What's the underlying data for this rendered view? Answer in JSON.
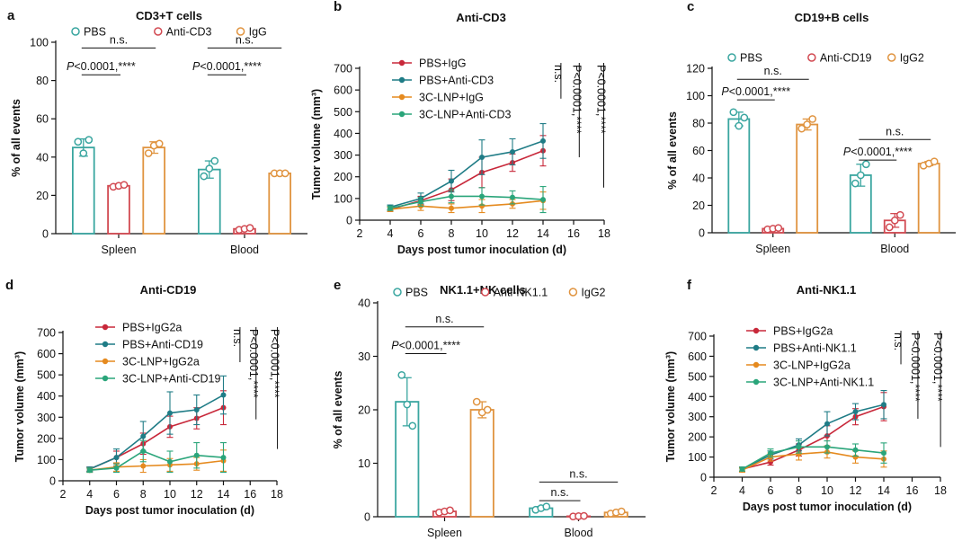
{
  "panels": [
    {
      "id": "a",
      "label": "a",
      "type": "bar",
      "title": "CD3+T cells",
      "ylabel": "% of all events",
      "ylim": [
        0,
        100
      ],
      "yticks": [
        0,
        20,
        40,
        60,
        80,
        100
      ],
      "categories": [
        "Spleen",
        "Blood"
      ],
      "series": [
        {
          "name": "PBS",
          "color": "#3aa6a0",
          "means": [
            45,
            33.5
          ],
          "errs": [
            4.5,
            4.5
          ],
          "points": [
            [
              48,
              42,
              49
            ],
            [
              30,
              34,
              38
            ]
          ]
        },
        {
          "name": "Anti-CD3",
          "color": "#d24a52",
          "means": [
            25,
            2.5
          ],
          "errs": [
            1,
            0.8
          ],
          "points": [
            [
              24.5,
              25,
              25.5
            ],
            [
              2,
              2.5,
              3
            ]
          ]
        },
        {
          "name": "IgG",
          "color": "#e09440",
          "means": [
            45,
            31.5
          ],
          "errs": [
            3,
            0.5
          ],
          "points": [
            [
              42,
              46,
              47
            ],
            [
              31.5,
              31.5,
              31.5
            ]
          ]
        }
      ],
      "annotations": [
        {
          "text": "n.s.",
          "cat": 0,
          "from": 0,
          "to": 2,
          "y": 97
        },
        {
          "p": "P",
          "text": "<0.0001,****",
          "cat": 0,
          "from": 0,
          "to": 1,
          "y": 83
        },
        {
          "text": "n.s.",
          "cat": 1,
          "from": 0,
          "to": 2,
          "y": 97
        },
        {
          "p": "P",
          "text": "<0.0001,****",
          "cat": 1,
          "from": 0,
          "to": 1,
          "y": 83
        }
      ]
    },
    {
      "id": "b",
      "label": "b",
      "type": "line",
      "title": "Anti-CD3",
      "ylabel": "Tumor volume (mm³)",
      "xlabel": "Days post tumor inoculation (d)",
      "xlim": [
        2,
        18
      ],
      "xticks": [
        2,
        4,
        6,
        8,
        10,
        12,
        14,
        16,
        18
      ],
      "ylim": [
        0,
        700
      ],
      "yticks": [
        0,
        100,
        200,
        300,
        400,
        500,
        600,
        700
      ],
      "x": [
        4,
        6,
        8,
        10,
        12,
        14
      ],
      "series": [
        {
          "name": "PBS+IgG",
          "color": "#c8283a",
          "values": [
            50,
            90,
            140,
            220,
            265,
            320
          ],
          "errs": [
            10,
            20,
            50,
            70,
            40,
            70
          ]
        },
        {
          "name": "PBS+Anti-CD3",
          "color": "#1f7c86",
          "values": [
            60,
            100,
            180,
            290,
            315,
            365
          ],
          "errs": [
            10,
            25,
            50,
            80,
            60,
            80
          ]
        },
        {
          "name": "3C-LNP+IgG",
          "color": "#e58a1f",
          "values": [
            50,
            65,
            55,
            65,
            75,
            90
          ],
          "errs": [
            10,
            20,
            20,
            30,
            20,
            40
          ]
        },
        {
          "name": "3C-LNP+Anti-CD3",
          "color": "#2aa57a",
          "values": [
            55,
            85,
            110,
            110,
            105,
            95
          ],
          "errs": [
            10,
            20,
            30,
            40,
            30,
            60
          ]
        }
      ],
      "sig": [
        "n.s.",
        "P<0.0001,****",
        "P<0.0001,****"
      ]
    },
    {
      "id": "c",
      "label": "c",
      "type": "bar",
      "title": "CD19+B cells",
      "ylabel": "% of all events",
      "ylim": [
        0,
        120
      ],
      "yticks": [
        0,
        20,
        40,
        60,
        80,
        100,
        120
      ],
      "categories": [
        "Spleen",
        "Blood"
      ],
      "series": [
        {
          "name": "PBS",
          "color": "#3aa6a0",
          "means": [
            83,
            42
          ],
          "errs": [
            5,
            8
          ],
          "points": [
            [
              88,
              78,
              84
            ],
            [
              36,
              42,
              50
            ]
          ]
        },
        {
          "name": "Anti-CD19",
          "color": "#d24a52",
          "means": [
            3,
            9
          ],
          "errs": [
            0.5,
            5
          ],
          "points": [
            [
              2.5,
              3,
              3.5
            ],
            [
              4,
              9,
              13
            ]
          ]
        },
        {
          "name": "IgG2",
          "color": "#e09440",
          "means": [
            79,
            50.5
          ],
          "errs": [
            4,
            1.5
          ],
          "points": [
            [
              76,
              79,
              83
            ],
            [
              49,
              50.5,
              52
            ]
          ]
        }
      ],
      "annotations": [
        {
          "text": "n.s.",
          "cat": 0,
          "from": 0,
          "to": 2,
          "y": 112
        },
        {
          "p": "P",
          "text": "<0.0001,****",
          "cat": 0,
          "from": 0,
          "to": 1,
          "y": 97
        },
        {
          "text": "n.s.",
          "cat": 1,
          "from": 0,
          "to": 2,
          "y": 68
        },
        {
          "p": "P",
          "text": "<0.0001,****",
          "cat": 1,
          "from": 0,
          "to": 1,
          "y": 53
        }
      ]
    },
    {
      "id": "d",
      "label": "d",
      "type": "line",
      "title": "Anti-CD19",
      "ylabel": "Tumor volume (mm³)",
      "xlabel": "Days post tumor inoculation (d)",
      "xlim": [
        2,
        18
      ],
      "xticks": [
        2,
        4,
        6,
        8,
        10,
        12,
        14,
        16,
        18
      ],
      "ylim": [
        0,
        700
      ],
      "yticks": [
        0,
        100,
        200,
        300,
        400,
        500,
        600,
        700
      ],
      "x": [
        4,
        6,
        8,
        10,
        12,
        14
      ],
      "series": [
        {
          "name": "PBS+IgG2a",
          "color": "#c8283a",
          "values": [
            55,
            110,
            175,
            255,
            295,
            345
          ],
          "errs": [
            10,
            30,
            50,
            50,
            50,
            80
          ]
        },
        {
          "name": "PBS+Anti-CD19",
          "color": "#1f7c86",
          "values": [
            55,
            110,
            210,
            320,
            335,
            405
          ],
          "errs": [
            10,
            40,
            70,
            100,
            70,
            90
          ]
        },
        {
          "name": "3C-LNP+IgG2a",
          "color": "#e58a1f",
          "values": [
            50,
            65,
            70,
            75,
            80,
            95
          ],
          "errs": [
            10,
            20,
            30,
            30,
            30,
            50
          ]
        },
        {
          "name": "3C-LNP+Anti-CD19",
          "color": "#2aa57a",
          "values": [
            50,
            60,
            140,
            90,
            120,
            110
          ],
          "errs": [
            10,
            20,
            50,
            50,
            60,
            70
          ]
        }
      ],
      "sig": [
        "n.s.",
        "P<0.0001,****",
        "P<0.0001,****"
      ]
    },
    {
      "id": "e",
      "label": "e",
      "type": "bar",
      "title": "NK1.1+NK cells",
      "ylabel": "% of all events",
      "ylim": [
        0,
        40
      ],
      "yticks": [
        0,
        10,
        20,
        30,
        40
      ],
      "categories": [
        "Spleen",
        "Blood"
      ],
      "series": [
        {
          "name": "PBS",
          "color": "#3aa6a0",
          "means": [
            21.5,
            1.6
          ],
          "errs": [
            4.5,
            0.3
          ],
          "points": [
            [
              26.5,
              21,
              17
            ],
            [
              1.3,
              1.6,
              1.9
            ]
          ]
        },
        {
          "name": "Anti-NK1.1",
          "color": "#d24a52",
          "means": [
            1,
            0.1
          ],
          "errs": [
            0.3,
            0.1
          ],
          "points": [
            [
              0.8,
              1,
              1.2
            ],
            [
              0.05,
              0.1,
              0.15
            ]
          ]
        },
        {
          "name": "IgG2",
          "color": "#e09440",
          "means": [
            20,
            0.8
          ],
          "errs": [
            1.5,
            0.2
          ],
          "points": [
            [
              21.5,
              19.5,
              20
            ],
            [
              0.6,
              0.8,
              1
            ]
          ]
        }
      ],
      "annotations": [
        {
          "text": "n.s.",
          "cat": 0,
          "from": 0,
          "to": 2,
          "y": 35.5
        },
        {
          "p": "P",
          "text": "<0.0001,****",
          "cat": 0,
          "from": 0,
          "to": 1,
          "y": 30.5
        },
        {
          "text": "n.s.",
          "cat": 1,
          "from": 0,
          "to": 2,
          "y": 6.5
        },
        {
          "text": "n.s.",
          "cat": 1,
          "from": 0,
          "to": 1,
          "y": 3
        }
      ]
    },
    {
      "id": "f",
      "label": "f",
      "type": "line",
      "title": "Anti-NK1.1",
      "ylabel": "Tumor volume (mm³)",
      "xlabel": "Days post tumor inoculation (d)",
      "xlim": [
        2,
        18
      ],
      "xticks": [
        2,
        4,
        6,
        8,
        10,
        12,
        14,
        16,
        18
      ],
      "ylim": [
        0,
        700
      ],
      "yticks": [
        0,
        100,
        200,
        300,
        400,
        500,
        600,
        700
      ],
      "x": [
        4,
        6,
        8,
        10,
        12,
        14
      ],
      "series": [
        {
          "name": "PBS+IgG2a",
          "color": "#c8283a",
          "values": [
            40,
            75,
            135,
            205,
            300,
            350
          ],
          "errs": [
            10,
            15,
            30,
            50,
            40,
            70
          ]
        },
        {
          "name": "PBS+Anti-NK1.1",
          "color": "#1f7c86",
          "values": [
            40,
            110,
            160,
            265,
            325,
            360
          ],
          "errs": [
            10,
            20,
            30,
            60,
            40,
            70
          ]
        },
        {
          "name": "3C-LNP+IgG2a",
          "color": "#e58a1f",
          "values": [
            35,
            100,
            115,
            125,
            100,
            90
          ],
          "errs": [
            10,
            20,
            30,
            30,
            30,
            40
          ]
        },
        {
          "name": "3C-LNP+Anti-NK1.1",
          "color": "#2aa57a",
          "values": [
            40,
            120,
            150,
            150,
            135,
            120
          ],
          "errs": [
            10,
            20,
            30,
            30,
            30,
            50
          ]
        }
      ],
      "sig": [
        "n.s.",
        "P<0.0001,****",
        "P<0.0001,****"
      ]
    }
  ],
  "chart_data": [
    {
      "type": "bar",
      "title": "CD3+T cells",
      "ylabel": "% of all events",
      "ylim": [
        0,
        100
      ],
      "categories": [
        "Spleen",
        "Blood"
      ],
      "series": [
        {
          "name": "PBS",
          "values": [
            45,
            33.5
          ]
        },
        {
          "name": "Anti-CD3",
          "values": [
            25,
            2.5
          ]
        },
        {
          "name": "IgG",
          "values": [
            45,
            31.5
          ]
        }
      ]
    },
    {
      "type": "line",
      "title": "Anti-CD3",
      "xlabel": "Days post tumor inoculation (d)",
      "ylabel": "Tumor volume (mm³)",
      "xlim": [
        2,
        18
      ],
      "ylim": [
        0,
        700
      ],
      "x": [
        4,
        6,
        8,
        10,
        12,
        14
      ],
      "series": [
        {
          "name": "PBS+IgG",
          "values": [
            50,
            90,
            140,
            220,
            265,
            320
          ]
        },
        {
          "name": "PBS+Anti-CD3",
          "values": [
            60,
            100,
            180,
            290,
            315,
            365
          ]
        },
        {
          "name": "3C-LNP+IgG",
          "values": [
            50,
            65,
            55,
            65,
            75,
            90
          ]
        },
        {
          "name": "3C-LNP+Anti-CD3",
          "values": [
            55,
            85,
            110,
            110,
            105,
            95
          ]
        }
      ]
    },
    {
      "type": "bar",
      "title": "CD19+B cells",
      "ylabel": "% of all events",
      "ylim": [
        0,
        120
      ],
      "categories": [
        "Spleen",
        "Blood"
      ],
      "series": [
        {
          "name": "PBS",
          "values": [
            83,
            42
          ]
        },
        {
          "name": "Anti-CD19",
          "values": [
            3,
            9
          ]
        },
        {
          "name": "IgG2",
          "values": [
            79,
            50.5
          ]
        }
      ]
    },
    {
      "type": "line",
      "title": "Anti-CD19",
      "xlabel": "Days post tumor inoculation (d)",
      "ylabel": "Tumor volume (mm³)",
      "xlim": [
        2,
        18
      ],
      "ylim": [
        0,
        700
      ],
      "x": [
        4,
        6,
        8,
        10,
        12,
        14
      ],
      "series": [
        {
          "name": "PBS+IgG2a",
          "values": [
            55,
            110,
            175,
            255,
            295,
            345
          ]
        },
        {
          "name": "PBS+Anti-CD19",
          "values": [
            55,
            110,
            210,
            320,
            335,
            405
          ]
        },
        {
          "name": "3C-LNP+IgG2a",
          "values": [
            50,
            65,
            70,
            75,
            80,
            95
          ]
        },
        {
          "name": "3C-LNP+Anti-CD19",
          "values": [
            50,
            60,
            140,
            90,
            120,
            110
          ]
        }
      ]
    },
    {
      "type": "bar",
      "title": "NK1.1+NK cells",
      "ylabel": "% of all events",
      "ylim": [
        0,
        40
      ],
      "categories": [
        "Spleen",
        "Blood"
      ],
      "series": [
        {
          "name": "PBS",
          "values": [
            21.5,
            1.6
          ]
        },
        {
          "name": "Anti-NK1.1",
          "values": [
            1,
            0.1
          ]
        },
        {
          "name": "IgG2",
          "values": [
            20,
            0.8
          ]
        }
      ]
    },
    {
      "type": "line",
      "title": "Anti-NK1.1",
      "xlabel": "Days post tumor inoculation (d)",
      "ylabel": "Tumor volume (mm³)",
      "xlim": [
        2,
        18
      ],
      "ylim": [
        0,
        700
      ],
      "x": [
        4,
        6,
        8,
        10,
        12,
        14
      ],
      "series": [
        {
          "name": "PBS+IgG2a",
          "values": [
            40,
            75,
            135,
            205,
            300,
            350
          ]
        },
        {
          "name": "PBS+Anti-NK1.1",
          "values": [
            40,
            110,
            160,
            265,
            325,
            360
          ]
        },
        {
          "name": "3C-LNP+IgG2a",
          "values": [
            35,
            100,
            115,
            125,
            100,
            90
          ]
        },
        {
          "name": "3C-LNP+Anti-NK1.1",
          "values": [
            40,
            120,
            150,
            150,
            135,
            120
          ]
        }
      ]
    }
  ]
}
